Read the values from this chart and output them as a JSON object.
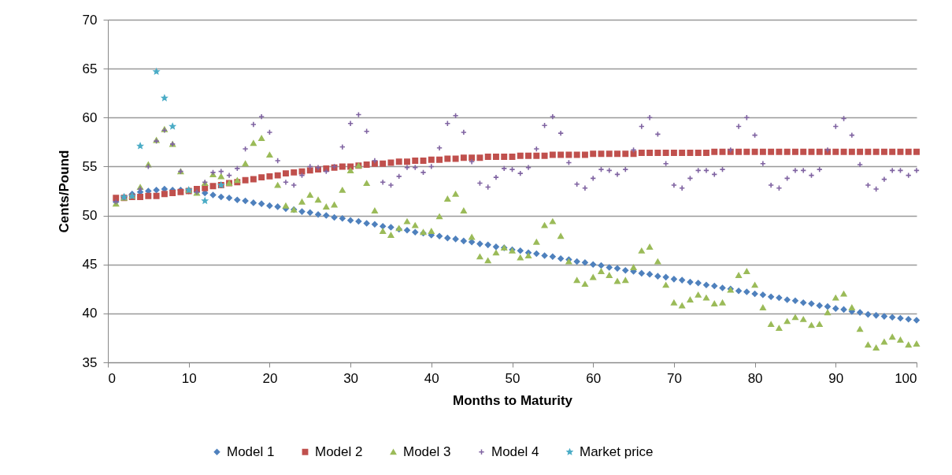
{
  "chart_data": {
    "type": "scatter",
    "xlabel": "Months to Maturity",
    "ylabel": "Cents/Pound",
    "x": [
      1,
      2,
      3,
      4,
      5,
      6,
      7,
      8,
      9,
      10,
      11,
      12,
      13,
      14,
      15,
      16,
      17,
      18,
      19,
      20,
      21,
      22,
      23,
      24,
      25,
      26,
      27,
      28,
      29,
      30,
      31,
      32,
      33,
      34,
      35,
      36,
      37,
      38,
      39,
      40,
      41,
      42,
      43,
      44,
      45,
      46,
      47,
      48,
      49,
      50,
      51,
      52,
      53,
      54,
      55,
      56,
      57,
      58,
      59,
      60,
      61,
      62,
      63,
      64,
      65,
      66,
      67,
      68,
      69,
      70,
      71,
      72,
      73,
      74,
      75,
      76,
      77,
      78,
      79,
      80,
      81,
      82,
      83,
      84,
      85,
      86,
      87,
      88,
      89,
      90,
      91,
      92,
      93,
      94,
      95,
      96,
      97,
      98,
      99,
      100
    ],
    "xlim": [
      0,
      100
    ],
    "xticks": [
      0,
      10,
      20,
      30,
      40,
      50,
      60,
      70,
      80,
      90,
      100
    ],
    "ylim": [
      35,
      70
    ],
    "yticks": [
      35,
      40,
      45,
      50,
      55,
      60,
      65,
      70
    ],
    "grid": "y",
    "legend": "bottom",
    "series": [
      {
        "name": "Model 1",
        "color": "#4f81bd",
        "marker": "diamond",
        "values": [
          51.4,
          51.9,
          52.2,
          52.4,
          52.5,
          52.6,
          52.7,
          52.6,
          52.6,
          52.5,
          52.4,
          52.3,
          52.1,
          51.9,
          51.8,
          51.6,
          51.5,
          51.3,
          51.2,
          51.0,
          50.9,
          50.7,
          50.6,
          50.4,
          50.3,
          50.1,
          50.0,
          49.8,
          49.7,
          49.5,
          49.4,
          49.2,
          49.1,
          48.9,
          48.8,
          48.6,
          48.5,
          48.3,
          48.2,
          48.0,
          47.9,
          47.7,
          47.6,
          47.4,
          47.3,
          47.1,
          47.0,
          46.8,
          46.7,
          46.5,
          46.4,
          46.2,
          46.1,
          45.9,
          45.8,
          45.6,
          45.5,
          45.3,
          45.2,
          45.0,
          44.9,
          44.7,
          44.6,
          44.4,
          44.3,
          44.1,
          44.0,
          43.8,
          43.7,
          43.5,
          43.4,
          43.2,
          43.1,
          42.9,
          42.8,
          42.6,
          42.5,
          42.3,
          42.2,
          42.0,
          41.9,
          41.7,
          41.6,
          41.4,
          41.3,
          41.1,
          41.0,
          40.8,
          40.7,
          40.5,
          40.4,
          40.2,
          40.1,
          39.9,
          39.8,
          39.7,
          39.6,
          39.5,
          39.4,
          39.3
        ]
      },
      {
        "name": "Model 2",
        "color": "#c0504d",
        "marker": "square",
        "values": [
          51.8,
          51.8,
          51.9,
          51.9,
          52.0,
          52.0,
          52.2,
          52.3,
          52.4,
          52.5,
          52.7,
          52.8,
          53.0,
          53.1,
          53.3,
          53.4,
          53.6,
          53.7,
          53.9,
          54.0,
          54.1,
          54.3,
          54.4,
          54.5,
          54.6,
          54.7,
          54.8,
          54.9,
          55.0,
          55.0,
          55.1,
          55.2,
          55.3,
          55.3,
          55.4,
          55.5,
          55.5,
          55.6,
          55.6,
          55.7,
          55.7,
          55.8,
          55.8,
          55.9,
          55.9,
          55.9,
          56.0,
          56.0,
          56.0,
          56.0,
          56.1,
          56.1,
          56.1,
          56.1,
          56.2,
          56.2,
          56.2,
          56.2,
          56.2,
          56.3,
          56.3,
          56.3,
          56.3,
          56.3,
          56.3,
          56.4,
          56.4,
          56.4,
          56.4,
          56.4,
          56.4,
          56.4,
          56.4,
          56.4,
          56.5,
          56.5,
          56.5,
          56.5,
          56.5,
          56.5,
          56.5,
          56.5,
          56.5,
          56.5,
          56.5,
          56.5,
          56.5,
          56.5,
          56.5,
          56.5,
          56.5,
          56.5,
          56.5,
          56.5,
          56.5,
          56.5,
          56.5,
          56.5,
          56.5,
          56.5
        ]
      },
      {
        "name": "Model 3",
        "color": "#9bbb59",
        "marker": "triangle",
        "values": [
          51.2,
          51.8,
          52.0,
          52.9,
          55.2,
          57.7,
          58.8,
          57.3,
          54.5,
          52.6,
          52.3,
          53.3,
          54.2,
          54.0,
          53.3,
          53.6,
          55.3,
          57.4,
          57.9,
          56.2,
          53.1,
          51.0,
          50.6,
          51.4,
          52.1,
          51.6,
          50.9,
          51.1,
          52.6,
          54.6,
          55.1,
          53.3,
          50.5,
          48.4,
          48.0,
          48.7,
          49.4,
          49.0,
          48.3,
          48.4,
          49.9,
          51.7,
          52.2,
          50.5,
          47.8,
          45.8,
          45.4,
          46.2,
          46.7,
          46.4,
          45.7,
          45.9,
          47.3,
          49.0,
          49.4,
          47.9,
          45.3,
          43.4,
          43.0,
          43.7,
          44.3,
          43.9,
          43.3,
          43.4,
          44.7,
          46.4,
          46.8,
          45.3,
          42.9,
          41.1,
          40.8,
          41.4,
          41.9,
          41.6,
          41.0,
          41.1,
          42.4,
          43.9,
          44.3,
          42.9,
          40.6,
          38.9,
          38.5,
          39.2,
          39.6,
          39.4,
          38.8,
          38.9,
          40.1,
          41.6,
          42.0,
          40.6,
          38.4,
          36.8,
          36.5,
          37.1,
          37.6,
          37.3,
          36.8,
          36.9
        ]
      },
      {
        "name": "Model 4",
        "color": "#8064a2",
        "marker": "cross",
        "values": [
          51.4,
          51.8,
          52.0,
          52.7,
          55.0,
          57.6,
          58.7,
          57.3,
          54.5,
          52.6,
          52.4,
          53.4,
          54.4,
          54.5,
          54.1,
          54.8,
          56.8,
          59.3,
          60.1,
          58.5,
          55.6,
          53.4,
          53.1,
          54.1,
          55.0,
          54.9,
          54.5,
          55.0,
          57.0,
          59.4,
          60.3,
          58.6,
          55.6,
          53.4,
          53.1,
          54.0,
          54.9,
          54.9,
          54.4,
          55.0,
          56.9,
          59.4,
          60.2,
          58.5,
          55.5,
          53.3,
          52.9,
          53.9,
          54.8,
          54.7,
          54.3,
          54.9,
          56.8,
          59.2,
          60.1,
          58.4,
          55.4,
          53.2,
          52.8,
          53.8,
          54.7,
          54.6,
          54.2,
          54.7,
          56.7,
          59.1,
          60.0,
          58.3,
          55.3,
          53.1,
          52.8,
          53.8,
          54.6,
          54.6,
          54.2,
          54.7,
          56.7,
          59.1,
          60.0,
          58.2,
          55.3,
          53.1,
          52.8,
          53.8,
          54.6,
          54.6,
          54.1,
          54.7,
          56.7,
          59.1,
          59.9,
          58.2,
          55.2,
          53.1,
          52.7,
          53.7,
          54.6,
          54.6,
          54.1,
          54.6
        ]
      },
      {
        "name": "Market price",
        "color": "#4bacc6",
        "marker": "star",
        "x": [
          2,
          3,
          4,
          6,
          7,
          8,
          10,
          12,
          14
        ],
        "values": [
          51.9,
          52.0,
          57.1,
          64.7,
          62.0,
          59.1,
          52.6,
          51.5,
          53.1
        ]
      }
    ]
  }
}
